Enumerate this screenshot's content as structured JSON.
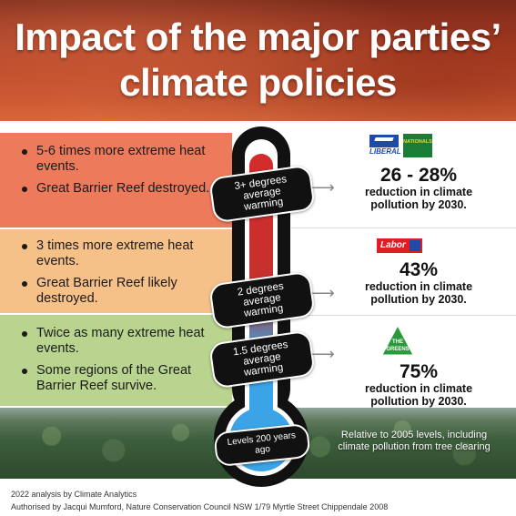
{
  "title": {
    "line1": "Impact of the major parties’",
    "line2": "climate policies"
  },
  "bands": [
    {
      "color": "#ee7a5c",
      "bullets": [
        "5-6 times more extreme heat events.",
        "Great Barrier Reef destroyed."
      ]
    },
    {
      "color": "#f6c188",
      "bullets": [
        "3 times more extreme heat events.",
        "Great Barrier Reef likely destroyed."
      ]
    },
    {
      "color": "#b9d48e",
      "bullets": [
        "Twice as many extreme heat events.",
        "Some regions of the Great Barrier Reef survive."
      ]
    }
  ],
  "thermometer": {
    "labels": [
      {
        "line1": "3+ degrees",
        "line2": "average warming"
      },
      {
        "line1": "2 degrees",
        "line2": "average warming"
      },
      {
        "line1": "1.5 degrees",
        "line2": "average warming"
      },
      {
        "line1": "Levels 200 years ago"
      }
    ],
    "colors": {
      "hot": "#d42c2c",
      "mid": "#b35a5e",
      "cool": "#3aa4e6"
    }
  },
  "results": [
    {
      "logos": {
        "liberal": "LIBERAL",
        "nationals": "NATIONALS"
      },
      "value": "26 - 28%",
      "text_line1": "reduction in climate",
      "text_line2": "pollution by 2030."
    },
    {
      "logos": {
        "labor": "Labor"
      },
      "value": "43%",
      "text_line1": "reduction in climate",
      "text_line2": "pollution by 2030."
    },
    {
      "logos": {
        "greens": "THE GREENS"
      },
      "value": "75%",
      "text_line1": "reduction in climate",
      "text_line2": "pollution by 2030."
    }
  ],
  "forest_note": {
    "line1": "Relative to 2005 levels, including",
    "line2": "climate pollution from tree clearing"
  },
  "footer": {
    "analysis": "2022 analysis by Climate Analytics",
    "authorised": "Authorised by Jacqui Mumford, Nature Conservation Council NSW 1/79 Myrtle Street Chippendale 2008"
  }
}
